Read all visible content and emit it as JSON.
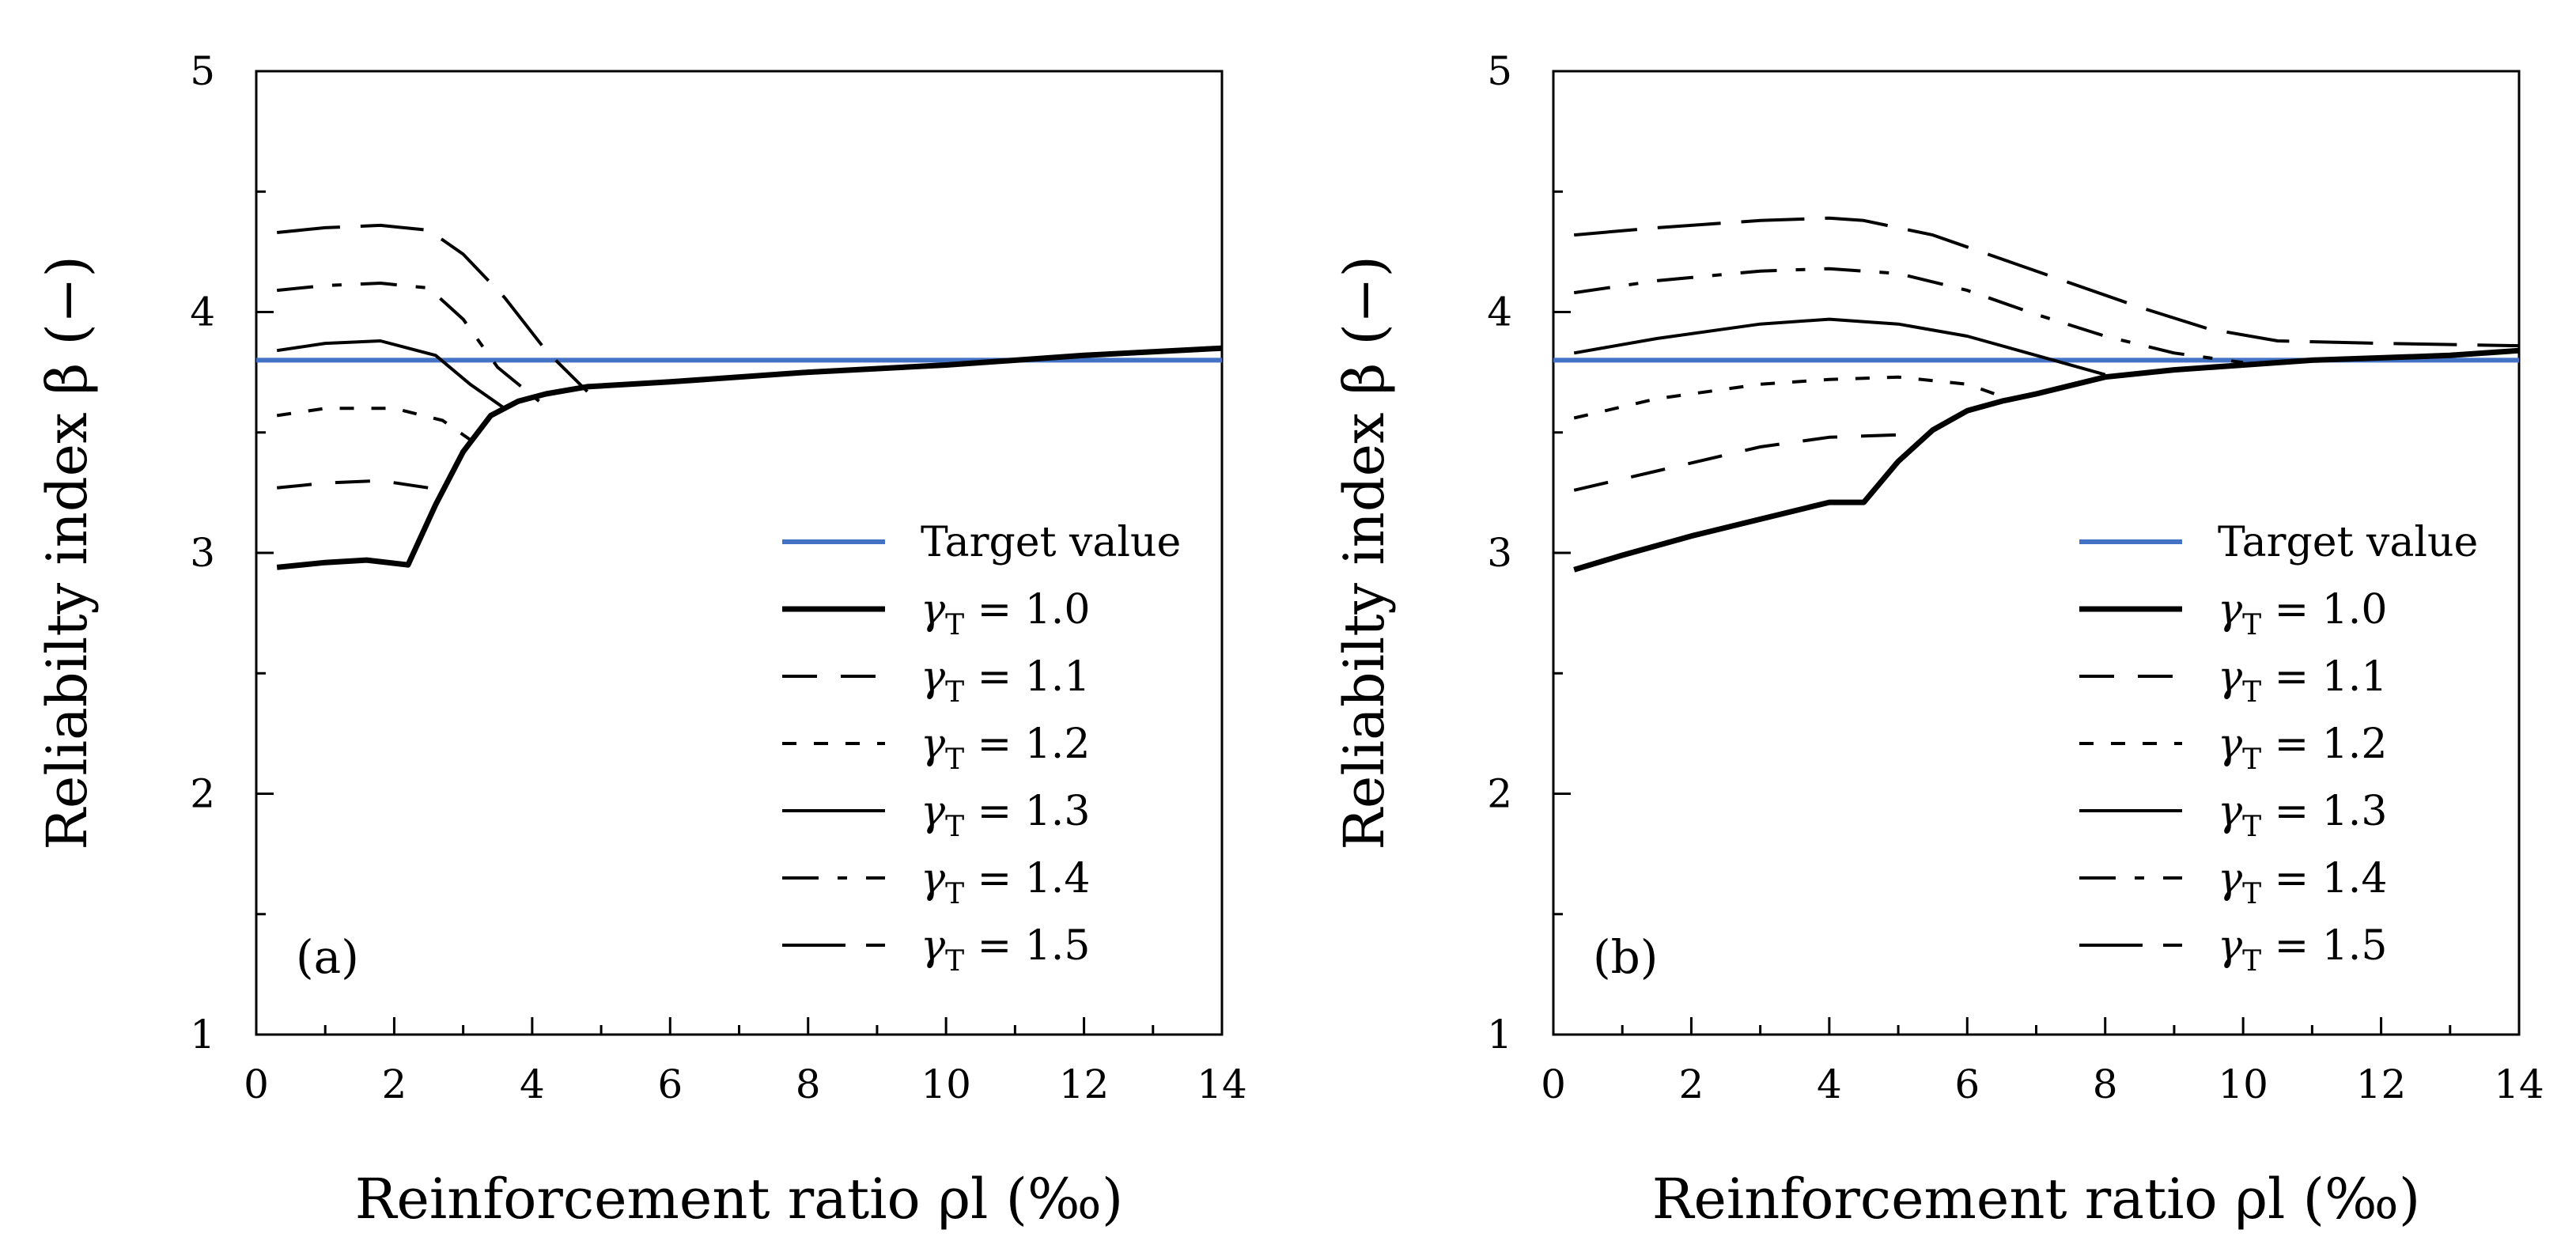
{
  "chart_data": [
    {
      "type": "line",
      "panel_label": "(a)",
      "xlabel": "Reinforcement ratio ρl (‰)",
      "ylabel": "Reliabilty index β (−)",
      "xlim": [
        0,
        14
      ],
      "ylim": [
        1,
        5
      ],
      "xticks": [
        0,
        2,
        4,
        6,
        8,
        10,
        12,
        14
      ],
      "yticks": [
        1,
        2,
        3,
        4,
        5
      ],
      "legend_position": "lower-right",
      "target": {
        "name": "Target value",
        "value": 3.8,
        "color": "#4472c4"
      },
      "series": [
        {
          "name": "γT = 1.0",
          "gamma": "1.0",
          "dash": "solid",
          "width": 7,
          "x": [
            0.3,
            1.0,
            1.6,
            2.2,
            2.6,
            3.0,
            3.4,
            3.8,
            4.2,
            4.8,
            6,
            8,
            10,
            12,
            14
          ],
          "y": [
            2.94,
            2.96,
            2.97,
            2.95,
            3.2,
            3.42,
            3.57,
            3.63,
            3.66,
            3.69,
            3.71,
            3.75,
            3.78,
            3.82,
            3.85
          ]
        },
        {
          "name": "γT = 1.1",
          "gamma": "1.1",
          "dash": "long",
          "width": 4,
          "x": [
            0.3,
            1.0,
            1.8,
            2.5
          ],
          "y": [
            3.27,
            3.29,
            3.3,
            3.27
          ]
        },
        {
          "name": "γT = 1.2",
          "gamma": "1.2",
          "dash": "short",
          "width": 4,
          "x": [
            0.3,
            1.0,
            2.0,
            2.7,
            3.1
          ],
          "y": [
            3.57,
            3.6,
            3.6,
            3.55,
            3.47
          ]
        },
        {
          "name": "γT = 1.3",
          "gamma": "1.3",
          "dash": "solid",
          "width": 4,
          "x": [
            0.3,
            1.0,
            1.8,
            2.6,
            3.1,
            3.6
          ],
          "y": [
            3.84,
            3.87,
            3.88,
            3.82,
            3.7,
            3.6
          ]
        },
        {
          "name": "γT = 1.4",
          "gamma": "1.4",
          "dash": "dashdot",
          "width": 4,
          "x": [
            0.3,
            1.0,
            1.8,
            2.5,
            3.0,
            3.5,
            4.1
          ],
          "y": [
            4.09,
            4.11,
            4.12,
            4.1,
            3.97,
            3.77,
            3.63
          ]
        },
        {
          "name": "γT = 1.5",
          "gamma": "1.5",
          "dash": "longdash",
          "width": 4,
          "x": [
            0.3,
            1.0,
            1.8,
            2.5,
            3.0,
            3.6,
            4.2,
            4.8
          ],
          "y": [
            4.33,
            4.35,
            4.36,
            4.34,
            4.24,
            4.06,
            3.84,
            3.67
          ]
        }
      ]
    },
    {
      "type": "line",
      "panel_label": "(b)",
      "xlabel": "Reinforcement ratio ρl (‰)",
      "ylabel": "Reliabilty index β (−)",
      "xlim": [
        0,
        14
      ],
      "ylim": [
        1,
        5
      ],
      "xticks": [
        0,
        2,
        4,
        6,
        8,
        10,
        12,
        14
      ],
      "yticks": [
        1,
        2,
        3,
        4,
        5
      ],
      "legend_position": "lower-right",
      "target": {
        "name": "Target value",
        "value": 3.8,
        "color": "#4472c4"
      },
      "series": [
        {
          "name": "γT = 1.0",
          "gamma": "1.0",
          "dash": "solid",
          "width": 7,
          "x": [
            0.3,
            1.0,
            2.0,
            3.0,
            4.0,
            4.5,
            5.0,
            5.5,
            6.0,
            6.5,
            7.0,
            8.0,
            9.0,
            10,
            11,
            12,
            13,
            14
          ],
          "y": [
            2.93,
            2.99,
            3.07,
            3.14,
            3.21,
            3.21,
            3.38,
            3.51,
            3.59,
            3.63,
            3.66,
            3.73,
            3.76,
            3.78,
            3.8,
            3.81,
            3.82,
            3.84
          ]
        },
        {
          "name": "γT = 1.1",
          "gamma": "1.1",
          "dash": "long",
          "width": 4,
          "x": [
            0.3,
            1.5,
            3.0,
            4.0,
            5.0
          ],
          "y": [
            3.26,
            3.34,
            3.44,
            3.48,
            3.49
          ]
        },
        {
          "name": "γT = 1.2",
          "gamma": "1.2",
          "dash": "short",
          "width": 4,
          "x": [
            0.3,
            1.5,
            3.0,
            4.0,
            5.0,
            6.0,
            6.5
          ],
          "y": [
            3.56,
            3.64,
            3.7,
            3.72,
            3.73,
            3.7,
            3.65
          ]
        },
        {
          "name": "γT = 1.3",
          "gamma": "1.3",
          "dash": "solid",
          "width": 4,
          "x": [
            0.3,
            1.5,
            3.0,
            4.0,
            5.0,
            6.0,
            7.0,
            8.0
          ],
          "y": [
            3.83,
            3.89,
            3.95,
            3.97,
            3.95,
            3.9,
            3.82,
            3.74
          ]
        },
        {
          "name": "γT = 1.4",
          "gamma": "1.4",
          "dash": "dashdot",
          "width": 4,
          "x": [
            0.3,
            1.5,
            3.0,
            4.0,
            5.0,
            6.0,
            7.0,
            8.0,
            9.0,
            10
          ],
          "y": [
            4.08,
            4.13,
            4.17,
            4.18,
            4.16,
            4.09,
            3.99,
            3.9,
            3.83,
            3.79
          ]
        },
        {
          "name": "γT = 1.5",
          "gamma": "1.5",
          "dash": "longdash",
          "width": 4,
          "x": [
            0.3,
            1.5,
            3.0,
            4.0,
            4.5,
            5.5,
            6.5,
            7.5,
            8.5,
            9.5,
            10.5,
            12,
            14
          ],
          "y": [
            4.32,
            4.35,
            4.38,
            4.39,
            4.38,
            4.32,
            4.22,
            4.12,
            4.02,
            3.93,
            3.88,
            3.87,
            3.86
          ]
        }
      ]
    }
  ]
}
